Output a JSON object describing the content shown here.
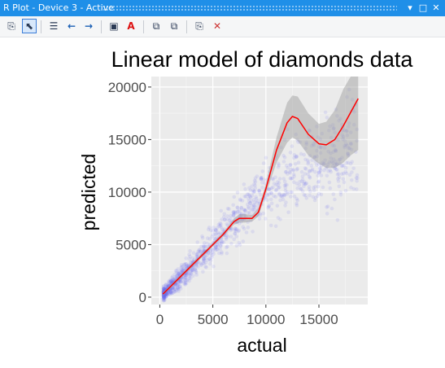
{
  "window": {
    "title": "R Plot - Device 3 - Active",
    "title_buttons": [
      "▾",
      "□",
      "✕"
    ]
  },
  "toolbar": {
    "icons": [
      {
        "name": "new-plot-icon",
        "glyph": "⎘"
      },
      {
        "name": "select-cursor-icon",
        "glyph": "⬉",
        "active": true
      },
      {
        "name": "plot-history-icon",
        "glyph": "☰"
      },
      {
        "name": "previous-plot-icon",
        "glyph": "←"
      },
      {
        "name": "next-plot-icon",
        "glyph": "→"
      },
      {
        "name": "export-image-icon",
        "glyph": "▣"
      },
      {
        "name": "export-pdf-icon",
        "glyph": "A"
      },
      {
        "name": "copy-bitmap-icon",
        "glyph": "⧉"
      },
      {
        "name": "copy-metafile-icon",
        "glyph": "⧉"
      },
      {
        "name": "copy-plot-icon",
        "glyph": "⎘"
      },
      {
        "name": "remove-plot-icon",
        "glyph": "✕"
      }
    ],
    "accent": "#3b7dd8"
  },
  "chart_data": {
    "type": "scatter",
    "title": "Linear model of diamonds data",
    "xlabel": "actual",
    "ylabel": "predicted",
    "xlim": [
      -800,
      19600
    ],
    "ylim": [
      -700,
      21000
    ],
    "x_ticks": [
      0,
      5000,
      10000,
      15000
    ],
    "x_tick_labels": [
      "0",
      "5000",
      "10000",
      "15000"
    ],
    "y_ticks": [
      0,
      5000,
      10000,
      15000,
      20000
    ],
    "y_tick_labels": [
      "0",
      "5000",
      "10000",
      "15000",
      "20000"
    ],
    "grid": true,
    "panel_background": "#ebebeb",
    "series": [
      {
        "kind": "points",
        "color": "#6f6ff2",
        "description_points": [
          [
            400,
            350
          ],
          [
            1000,
            900
          ],
          [
            2000,
            1900
          ],
          [
            3000,
            2900
          ],
          [
            4000,
            3900
          ],
          [
            5000,
            5000
          ],
          [
            6000,
            6000
          ],
          [
            7000,
            7100
          ],
          [
            8000,
            8200
          ],
          [
            9000,
            9200
          ],
          [
            10000,
            10200
          ],
          [
            11000,
            11000
          ],
          [
            12000,
            11700
          ],
          [
            13000,
            12200
          ],
          [
            14000,
            12700
          ],
          [
            15000,
            13000
          ],
          [
            16000,
            13300
          ],
          [
            17000,
            13600
          ],
          [
            18000,
            13900
          ]
        ]
      },
      {
        "kind": "smooth",
        "color": "#ff0000",
        "ribbon_color": "#999999",
        "x": [
          300,
          1000,
          2000,
          3000,
          4000,
          5000,
          6000,
          7000,
          7500,
          8000,
          8700,
          9300,
          10000,
          11000,
          12000,
          12500,
          13000,
          14000,
          15000,
          15700,
          16500,
          17300,
          18000,
          18700
        ],
        "y": [
          300,
          1000,
          2000,
          3000,
          4000,
          5000,
          6000,
          7200,
          7500,
          7500,
          7500,
          8100,
          10300,
          14000,
          16600,
          17200,
          17000,
          15500,
          14600,
          14500,
          15000,
          16300,
          17600,
          18900
        ],
        "lower": [
          100,
          800,
          1800,
          2800,
          3800,
          4800,
          5800,
          6900,
          7100,
          7100,
          7200,
          7700,
          9800,
          12800,
          14700,
          15200,
          14900,
          13500,
          12700,
          12300,
          12300,
          12800,
          13500,
          14000
        ],
        "upper": [
          500,
          1200,
          2200,
          3200,
          4200,
          5200,
          6200,
          7500,
          7900,
          7900,
          7800,
          8500,
          10800,
          15200,
          18500,
          19200,
          19100,
          17500,
          16500,
          16700,
          17800,
          19800,
          21000,
          21000
        ]
      }
    ]
  }
}
